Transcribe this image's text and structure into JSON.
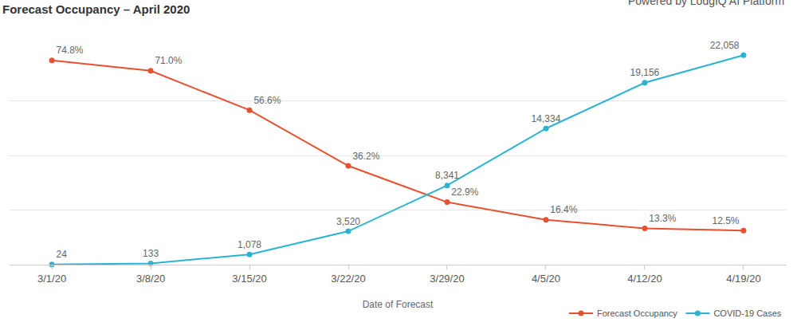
{
  "chart_data": {
    "type": "line",
    "title": "Forecast Occupancy – April 2020",
    "annotations": [
      "Powered by LodgIQ AI Platform"
    ],
    "x_label": "Date of Forecast",
    "categories": [
      "3/1/20",
      "3/8/20",
      "3/15/20",
      "3/22/20",
      "3/29/20",
      "4/5/20",
      "4/12/20",
      "4/19/20"
    ],
    "series": [
      {
        "name": "Forecast Occupancy",
        "color": "#e8502f",
        "axis": "y",
        "values": [
          74.8,
          71.0,
          56.6,
          36.2,
          22.9,
          16.4,
          13.3,
          12.5
        ],
        "value_labels": [
          "74.8%",
          "71.0%",
          "56.6%",
          "36.2%",
          "22.9%",
          "16.4%",
          "13.3%",
          "12.5%"
        ]
      },
      {
        "name": "COVID-19 Cases",
        "color": "#2bb3d4",
        "axis": "y2",
        "values": [
          24,
          133,
          1078,
          3520,
          8341,
          14334,
          19156,
          22058
        ],
        "value_labels": [
          "24",
          "133",
          "1,078",
          "3,520",
          "8,341",
          "14,334",
          "19,156",
          "22,058"
        ]
      }
    ],
    "ylim": [
      0,
      80
    ],
    "yticks": [
      0,
      20,
      40,
      60,
      80
    ],
    "y2lim": [
      0,
      23000
    ],
    "grid": true,
    "legend": "bottom right",
    "data_labels": true,
    "tick_labels": "x",
    "marker": "circle",
    "line_style": "solid"
  }
}
